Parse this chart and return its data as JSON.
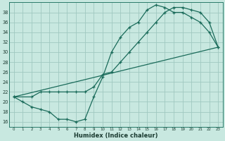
{
  "background_color": "#c8e8e0",
  "grid_color": "#a0c8c0",
  "line_color": "#1a6b5a",
  "xlabel": "Humidex (Indice chaleur)",
  "xlim": [
    -0.5,
    23.5
  ],
  "ylim": [
    15,
    40
  ],
  "yticks": [
    16,
    18,
    20,
    22,
    24,
    26,
    28,
    30,
    32,
    34,
    36,
    38
  ],
  "xticks": [
    0,
    1,
    2,
    3,
    4,
    5,
    6,
    7,
    8,
    9,
    10,
    11,
    12,
    13,
    14,
    15,
    16,
    17,
    18,
    19,
    20,
    21,
    22,
    23
  ],
  "line1_x": [
    0,
    1,
    2,
    3,
    4,
    5,
    6,
    7,
    8,
    9,
    10,
    11,
    12,
    13,
    14,
    15,
    16,
    17,
    18,
    19,
    20,
    21,
    22,
    23
  ],
  "line1_y": [
    21,
    20,
    19,
    18.5,
    18,
    16.5,
    16.5,
    16,
    16.5,
    21,
    25,
    30,
    33,
    35,
    36,
    38.5,
    39.5,
    39,
    38,
    38,
    37,
    36,
    34,
    31
  ],
  "line2_x": [
    0,
    2,
    3,
    4,
    5,
    6,
    7,
    8,
    9,
    10,
    11,
    12,
    13,
    14,
    15,
    16,
    17,
    18,
    19,
    20,
    21,
    22,
    23
  ],
  "line2_y": [
    21,
    21,
    22,
    22,
    22,
    22,
    22,
    22,
    23,
    25.5,
    26,
    28,
    30,
    32,
    34,
    36,
    38,
    39,
    39,
    38.5,
    38,
    36,
    31
  ],
  "line3_x": [
    0,
    23
  ],
  "line3_y": [
    21,
    31
  ]
}
